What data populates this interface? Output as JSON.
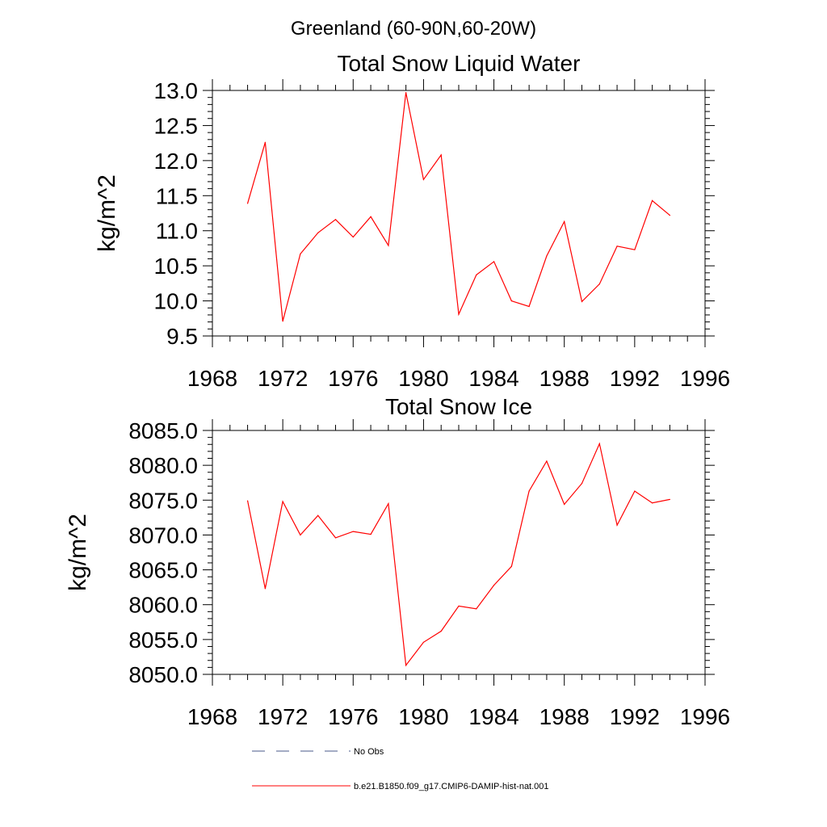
{
  "figure": {
    "title": "Greenland (60-90N,60-20W)"
  },
  "chart_data": [
    {
      "type": "line",
      "title": "Total Snow Liquid Water",
      "xlabel": "",
      "ylabel": "kg/m^2",
      "xlim": [
        1968,
        1996
      ],
      "ylim": [
        9.5,
        13.0
      ],
      "xticks": [
        1968,
        1972,
        1976,
        1980,
        1984,
        1988,
        1992,
        1996
      ],
      "xtick_labels": [
        "1968",
        "1972",
        "1976",
        "1980",
        "1984",
        "1988",
        "1992",
        "1996"
      ],
      "yticks": [
        9.5,
        10.0,
        10.5,
        11.0,
        11.5,
        12.0,
        12.5,
        13.0
      ],
      "ytick_labels": [
        "9.5",
        "10.0",
        "10.5",
        "11.0",
        "11.5",
        "12.0",
        "12.5",
        "13.0"
      ],
      "x": [
        1970,
        1971,
        1972,
        1973,
        1974,
        1975,
        1976,
        1977,
        1978,
        1979,
        1980,
        1981,
        1982,
        1983,
        1984,
        1985,
        1986,
        1987,
        1988,
        1989,
        1990,
        1991,
        1992,
        1993,
        1994
      ],
      "series": [
        {
          "name": "b.e21.B1850.f09_g17.CMIP6-DAMIP-hist-nat.001",
          "color": "#ff0000",
          "values": [
            11.39,
            12.26,
            9.71,
            10.67,
            10.97,
            11.16,
            10.91,
            11.2,
            10.79,
            12.97,
            11.73,
            12.08,
            9.81,
            10.37,
            10.56,
            10.0,
            9.92,
            10.64,
            11.13,
            9.99,
            10.24,
            10.78,
            10.73,
            11.43,
            11.22
          ]
        }
      ],
      "grid": false
    },
    {
      "type": "line",
      "title": "Total Snow Ice",
      "xlabel": "",
      "ylabel": "kg/m^2",
      "xlim": [
        1968,
        1996
      ],
      "ylim": [
        8050.0,
        8085.0
      ],
      "xticks": [
        1968,
        1972,
        1976,
        1980,
        1984,
        1988,
        1992,
        1996
      ],
      "xtick_labels": [
        "1968",
        "1972",
        "1976",
        "1980",
        "1984",
        "1988",
        "1992",
        "1996"
      ],
      "yticks": [
        8050.0,
        8055.0,
        8060.0,
        8065.0,
        8070.0,
        8075.0,
        8080.0,
        8085.0
      ],
      "ytick_labels": [
        "8050.0",
        "8055.0",
        "8060.0",
        "8065.0",
        "8070.0",
        "8075.0",
        "8080.0",
        "8085.0"
      ],
      "x": [
        1970,
        1971,
        1972,
        1973,
        1974,
        1975,
        1976,
        1977,
        1978,
        1979,
        1980,
        1981,
        1982,
        1983,
        1984,
        1985,
        1986,
        1987,
        1988,
        1989,
        1990,
        1991,
        1992,
        1993,
        1994
      ],
      "series": [
        {
          "name": "b.e21.B1850.f09_g17.CMIP6-DAMIP-hist-nat.001",
          "color": "#ff0000",
          "values": [
            8074.9,
            8062.3,
            8074.8,
            8070.0,
            8072.8,
            8069.6,
            8070.5,
            8070.1,
            8074.5,
            8051.3,
            8054.6,
            8056.2,
            8059.8,
            8059.4,
            8062.8,
            8065.5,
            8076.3,
            8080.6,
            8074.4,
            8077.4,
            8083.1,
            8071.4,
            8076.3,
            8074.6,
            8075.1
          ]
        }
      ],
      "grid": false
    }
  ],
  "legend": {
    "placement": "bottom",
    "entries": [
      {
        "label": "No Obs",
        "color": "#4a5a8a",
        "style": "dashed"
      },
      {
        "label": "b.e21.B1850.f09_g17.CMIP6-DAMIP-hist-nat.001",
        "color": "#ff0000",
        "style": "solid"
      }
    ]
  }
}
